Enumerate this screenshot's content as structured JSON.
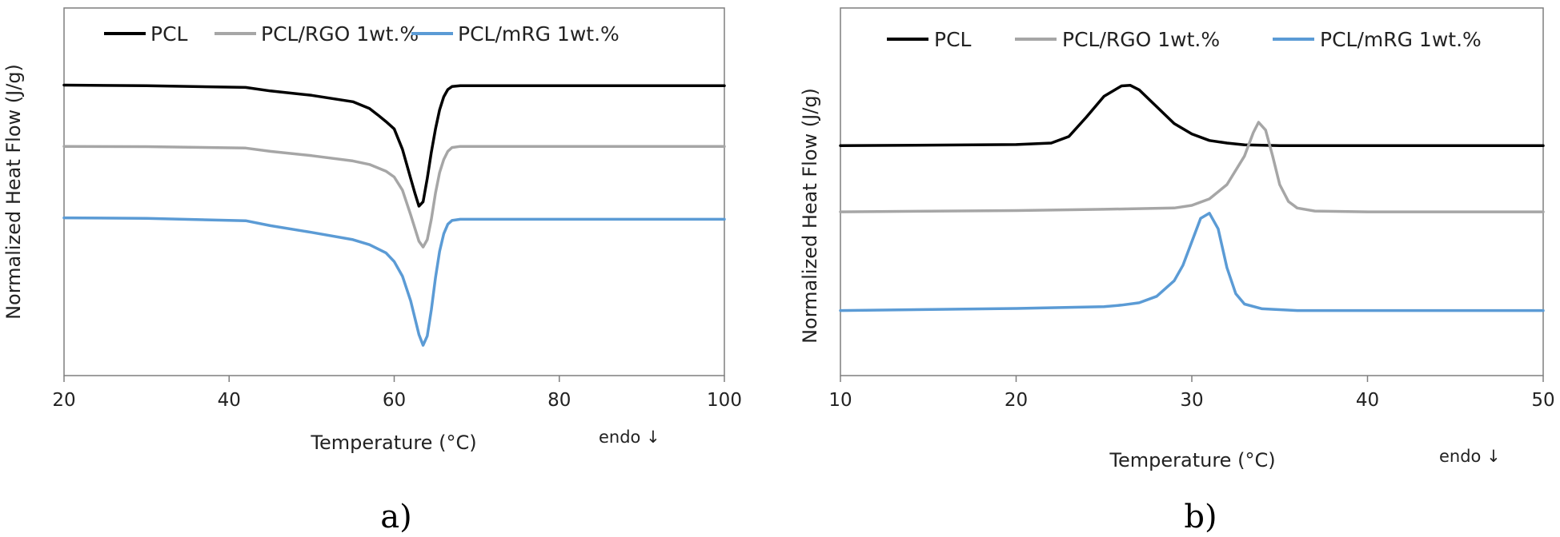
{
  "chart_data": [
    {
      "type": "line",
      "panel_label": "a)",
      "xlabel": "Temperature (°C)",
      "ylabel": "Normalized Heat Flow (J/g)",
      "annotation": "endo ↓",
      "xlim": [
        20,
        100
      ],
      "ylim": [
        0,
        100
      ],
      "xticks": [
        20,
        40,
        60,
        80,
        100
      ],
      "y_ticks_shown": false,
      "grid": false,
      "legend_position": "top",
      "series": [
        {
          "name": "PCL",
          "color": "#000000",
          "points": [
            [
              20,
              90.0
            ],
            [
              30,
              89.8
            ],
            [
              42,
              89.2
            ],
            [
              45,
              88.0
            ],
            [
              50,
              86.5
            ],
            [
              55,
              84.3
            ],
            [
              57,
              82.0
            ],
            [
              58,
              79.8
            ],
            [
              59,
              77.5
            ],
            [
              60,
              75.0
            ],
            [
              61,
              68.0
            ],
            [
              62,
              58.0
            ],
            [
              62.5,
              53.0
            ],
            [
              63,
              48.5
            ],
            [
              63.5,
              50.0
            ],
            [
              64,
              58.0
            ],
            [
              64.5,
              67.0
            ],
            [
              65,
              75.0
            ],
            [
              65.5,
              81.5
            ],
            [
              66,
              86.0
            ],
            [
              66.5,
              88.5
            ],
            [
              67,
              89.5
            ],
            [
              68,
              89.8
            ],
            [
              75,
              89.8
            ],
            [
              90,
              89.8
            ],
            [
              100,
              89.8
            ]
          ]
        },
        {
          "name": "PCL/RGO 1wt.%",
          "color": "#a6a6a6",
          "points": [
            [
              20,
              69.0
            ],
            [
              30,
              68.9
            ],
            [
              42,
              68.4
            ],
            [
              45,
              67.3
            ],
            [
              50,
              65.8
            ],
            [
              55,
              64.0
            ],
            [
              57,
              62.8
            ],
            [
              59,
              60.5
            ],
            [
              60,
              58.5
            ],
            [
              61,
              54.0
            ],
            [
              62,
              45.5
            ],
            [
              63,
              36.5
            ],
            [
              63.5,
              34.5
            ],
            [
              64,
              37.0
            ],
            [
              64.5,
              44.0
            ],
            [
              65,
              53.0
            ],
            [
              65.5,
              60.0
            ],
            [
              66,
              64.5
            ],
            [
              66.5,
              67.3
            ],
            [
              67,
              68.6
            ],
            [
              68,
              69.0
            ],
            [
              80,
              69.0
            ],
            [
              100,
              69.0
            ]
          ]
        },
        {
          "name": "PCL/mRG 1wt.%",
          "color": "#5b9bd5",
          "points": [
            [
              20,
              44.5
            ],
            [
              30,
              44.3
            ],
            [
              42,
              43.5
            ],
            [
              45,
              41.8
            ],
            [
              50,
              39.5
            ],
            [
              55,
              37.0
            ],
            [
              57,
              35.3
            ],
            [
              59,
              32.5
            ],
            [
              60,
              29.5
            ],
            [
              61,
              24.5
            ],
            [
              62,
              16.0
            ],
            [
              63,
              4.5
            ],
            [
              63.5,
              0.8
            ],
            [
              64,
              4.0
            ],
            [
              64.5,
              13.0
            ],
            [
              65,
              24.0
            ],
            [
              65.5,
              33.0
            ],
            [
              66,
              39.0
            ],
            [
              66.5,
              42.3
            ],
            [
              67,
              43.6
            ],
            [
              68,
              44.0
            ],
            [
              80,
              44.0
            ],
            [
              100,
              44.0
            ]
          ]
        }
      ]
    },
    {
      "type": "line",
      "panel_label": "b)",
      "xlabel": "Temperature (°C)",
      "ylabel": "Normalized Heat Flow (J/g)",
      "annotation": "endo ↓",
      "xlim": [
        10,
        50
      ],
      "ylim": [
        0,
        100
      ],
      "xticks": [
        10,
        20,
        30,
        40,
        50
      ],
      "y_ticks_shown": false,
      "grid": false,
      "legend_position": "top",
      "series": [
        {
          "name": "PCL",
          "color": "#000000",
          "points": [
            [
              10,
              67.0
            ],
            [
              20,
              67.4
            ],
            [
              22,
              68.0
            ],
            [
              23,
              70.5
            ],
            [
              24,
              78.0
            ],
            [
              25,
              86.0
            ],
            [
              26,
              90.0
            ],
            [
              26.5,
              90.2
            ],
            [
              27,
              88.5
            ],
            [
              28,
              82.0
            ],
            [
              29,
              75.5
            ],
            [
              30,
              71.5
            ],
            [
              31,
              69.0
            ],
            [
              32,
              68.0
            ],
            [
              33,
              67.3
            ],
            [
              35,
              67.0
            ],
            [
              40,
              67.0
            ],
            [
              50,
              67.0
            ]
          ]
        },
        {
          "name": "PCL/RGO 1wt.%",
          "color": "#a6a6a6",
          "points": [
            [
              10,
              41.5
            ],
            [
              20,
              42.0
            ],
            [
              25,
              42.5
            ],
            [
              29,
              43.0
            ],
            [
              30,
              44.0
            ],
            [
              31,
              46.5
            ],
            [
              32,
              52.0
            ],
            [
              33,
              63.0
            ],
            [
              33.5,
              72.0
            ],
            [
              33.8,
              76.0
            ],
            [
              34.2,
              73.0
            ],
            [
              34.6,
              63.0
            ],
            [
              35,
              52.0
            ],
            [
              35.5,
              45.5
            ],
            [
              36,
              43.0
            ],
            [
              37,
              41.8
            ],
            [
              40,
              41.5
            ],
            [
              50,
              41.5
            ]
          ]
        },
        {
          "name": "PCL/mRG 1wt.%",
          "color": "#5b9bd5",
          "points": [
            [
              10,
              3.5
            ],
            [
              20,
              4.3
            ],
            [
              25,
              5.0
            ],
            [
              26,
              5.6
            ],
            [
              27,
              6.5
            ],
            [
              28,
              9.0
            ],
            [
              29,
              15.0
            ],
            [
              29.5,
              21.0
            ],
            [
              30,
              30.0
            ],
            [
              30.5,
              39.0
            ],
            [
              31,
              41.0
            ],
            [
              31.5,
              35.0
            ],
            [
              32,
              20.0
            ],
            [
              32.5,
              10.0
            ],
            [
              33,
              6.0
            ],
            [
              34,
              4.2
            ],
            [
              36,
              3.5
            ],
            [
              50,
              3.5
            ]
          ]
        }
      ]
    }
  ]
}
